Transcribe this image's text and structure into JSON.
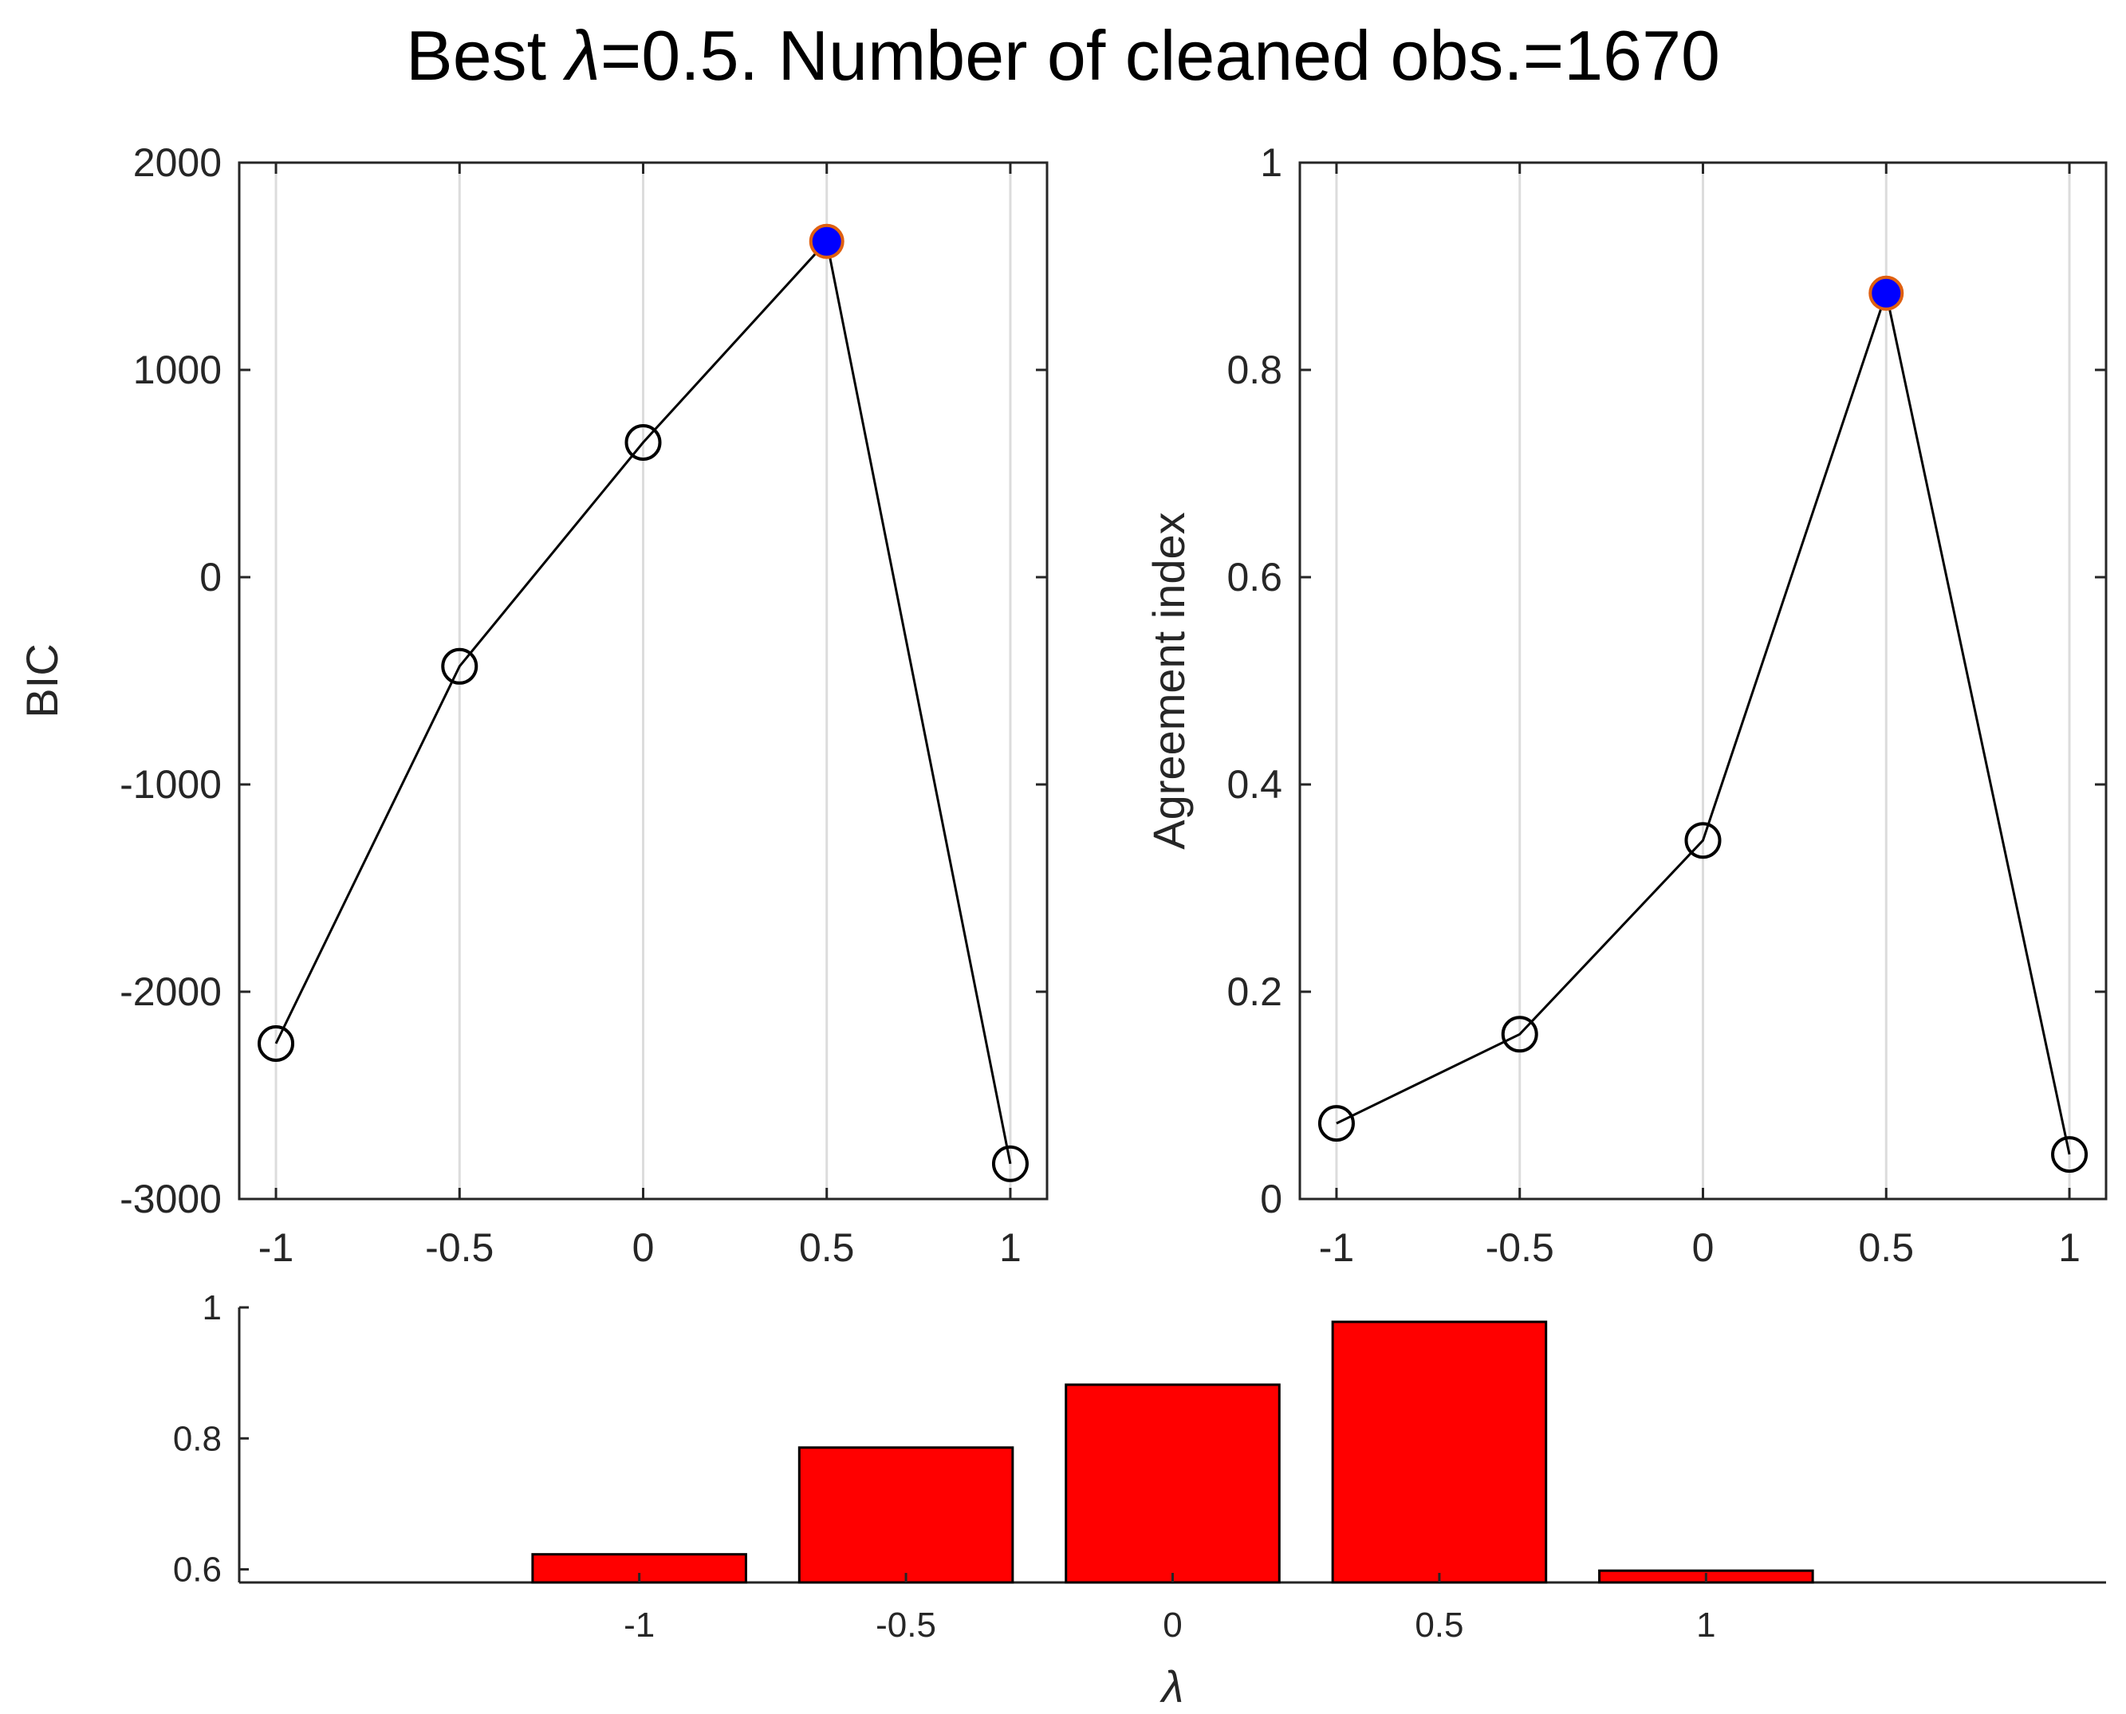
{
  "title_prefix": "Best ",
  "title_lambda_symbol": "λ",
  "title_suffix": "=0.5. Number of cleaned obs.=1670",
  "colors": {
    "best_fill": "#0000ff",
    "best_edge": "#e06010",
    "bar_fill": "#ff0000",
    "line": "#000000"
  },
  "chart_data": [
    {
      "type": "line",
      "title": "",
      "xlabel": "",
      "ylabel": "BIC",
      "x": [
        -1,
        -0.5,
        0,
        0.5,
        1
      ],
      "y": [
        -2250,
        -430,
        650,
        1620,
        -2830
      ],
      "best_x": 0.5,
      "xlim": [
        -1.1,
        1.1
      ],
      "ylim": [
        -3000,
        2000
      ],
      "xticks": [
        -1,
        -0.5,
        0,
        0.5,
        1
      ],
      "xtick_labels": [
        "-1",
        "-0.5",
        "0",
        "0.5",
        "1"
      ],
      "yticks": [
        -3000,
        -2000,
        -1000,
        0,
        1000,
        2000
      ],
      "ytick_labels": [
        "-3000",
        "-2000",
        "-1000",
        "0",
        "1000",
        "2000"
      ],
      "grid": "vertical"
    },
    {
      "type": "line",
      "title": "",
      "xlabel": "",
      "ylabel": "Agreement  index",
      "x": [
        -1,
        -0.5,
        0,
        0.5,
        1
      ],
      "y": [
        0.073,
        0.159,
        0.346,
        0.874,
        0.043
      ],
      "best_x": 0.5,
      "xlim": [
        -1.1,
        1.1
      ],
      "ylim": [
        0,
        1
      ],
      "xticks": [
        -1,
        -0.5,
        0,
        0.5,
        1
      ],
      "xtick_labels": [
        "-1",
        "-0.5",
        "0",
        "0.5",
        "1"
      ],
      "yticks": [
        0,
        0.2,
        0.4,
        0.6,
        0.8,
        1
      ],
      "ytick_labels": [
        "0",
        "0.2",
        "0.4",
        "0.6",
        "0.8",
        "1"
      ],
      "grid": "vertical"
    },
    {
      "type": "bar",
      "title": "",
      "xlabel": "λ",
      "ylabel": "",
      "categories": [
        "-1",
        "-0.5",
        "0",
        "0.5",
        "1"
      ],
      "values": [
        0.623,
        0.786,
        0.882,
        0.978,
        0.598
      ],
      "ylim": [
        0.58,
        1
      ],
      "yticks": [
        0.6,
        0.8,
        1
      ],
      "ytick_labels": [
        "0.6",
        "0.8",
        "1"
      ]
    }
  ]
}
